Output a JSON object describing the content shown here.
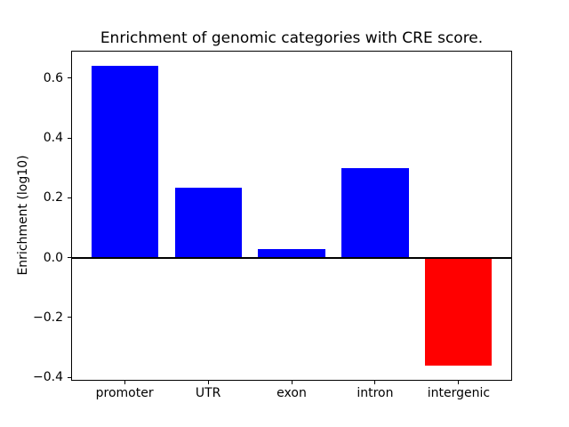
{
  "chart_data": {
    "type": "bar",
    "title": "Enrichment of genomic categories with CRE score.",
    "ylabel": "Enrichment (log10)",
    "xlabel": "",
    "categories": [
      "promoter",
      "UTR",
      "exon",
      "intron",
      "intergenic"
    ],
    "values": [
      0.64,
      0.235,
      0.03,
      0.3,
      -0.36
    ],
    "bar_colors": [
      "#0000ff",
      "#0000ff",
      "#0000ff",
      "#0000ff",
      "#ff0000"
    ],
    "bar_width_fraction": 0.8,
    "ylim": [
      -0.41,
      0.69
    ],
    "xlim": [
      -0.64,
      4.64
    ],
    "yticks": [
      {
        "value": 0.6,
        "label": "0.6"
      },
      {
        "value": 0.4,
        "label": "0.4"
      },
      {
        "value": 0.2,
        "label": "0.2"
      },
      {
        "value": 0.0,
        "label": "0.0"
      },
      {
        "value": -0.2,
        "label": "−0.2"
      },
      {
        "value": -0.4,
        "label": "−0.4"
      }
    ],
    "zero_line": {
      "value": 0,
      "color": "#000000",
      "thickness_px": 2
    },
    "grid": false,
    "colors": {
      "positive": "#0000ff",
      "negative": "#ff0000",
      "axis": "#000000",
      "text": "#000000",
      "background": "#ffffff"
    }
  }
}
